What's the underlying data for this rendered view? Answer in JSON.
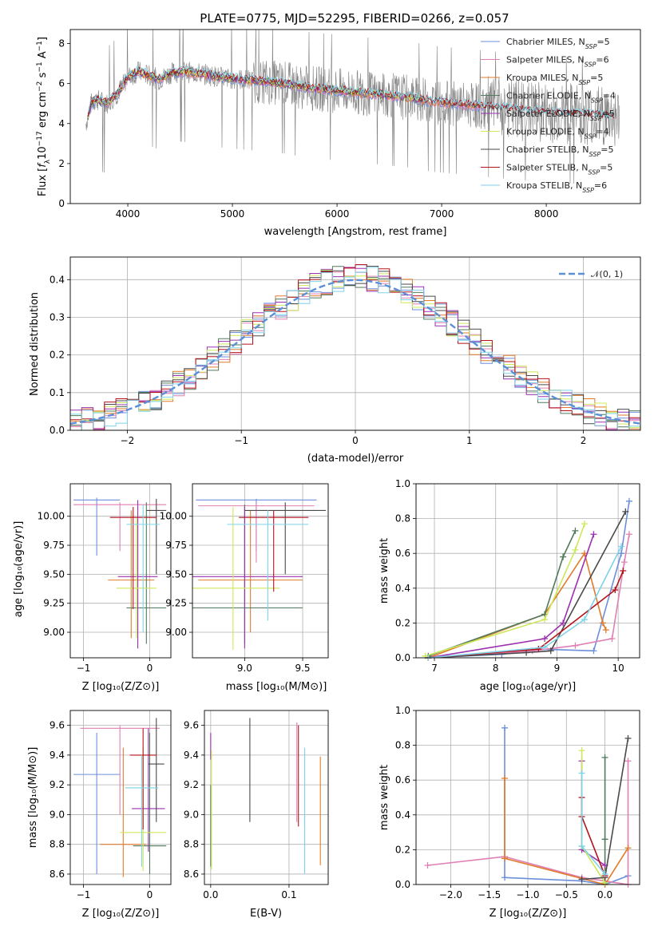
{
  "figure_title": "PLATE=0775, MJD=52295, FIBERID=0266, z=0.057",
  "colors": {
    "chabrier_miles": "#6c8fdc",
    "salpeter_miles": "#e07fb3",
    "kroupa_miles": "#e07b2a",
    "chabrier_elodie": "#527a5c",
    "salpeter_elodie": "#9b30b0",
    "kroupa_elodie": "#cde85a",
    "chabrier_stelib": "#4a4a4a",
    "salpeter_stelib": "#b5121b",
    "kroupa_stelib": "#7dd3e8",
    "data": "#808080",
    "gauss": "#5b8fd6"
  },
  "chart_data": [
    {
      "id": "spectrum",
      "type": "line",
      "title": "PLATE=0775, MJD=52295, FIBERID=0266, z=0.057",
      "xlabel": "wavelength [Angstrom, rest frame]",
      "ylabel": "Flux [f_λ 10^-17 erg cm^-2 s^-1 A^-1]",
      "xlim": [
        3450,
        8900
      ],
      "ylim": [
        0,
        8.7
      ],
      "xticks": [
        "4000",
        "5000",
        "6000",
        "7000",
        "8000"
      ],
      "yticks": [
        "0",
        "2",
        "4",
        "6",
        "8"
      ],
      "legend_position": "top-right",
      "legend": [
        {
          "label": "Chabrier MILES, N",
          "sub": "SSP",
          "suffix": "=5",
          "color": "chabrier_miles"
        },
        {
          "label": "Salpeter MILES, N",
          "sub": "SSP",
          "suffix": "=6",
          "color": "salpeter_miles"
        },
        {
          "label": "Kroupa MILES, N",
          "sub": "SSP",
          "suffix": "=5",
          "color": "kroupa_miles"
        },
        {
          "label": "Chabrier ELODIE, N",
          "sub": "SSP",
          "suffix": "=4",
          "color": "chabrier_elodie"
        },
        {
          "label": "Salpeter ELODIE, N",
          "sub": "SSP",
          "suffix": "=5",
          "color": "salpeter_elodie"
        },
        {
          "label": "Kroupa ELODIE, N",
          "sub": "SSP",
          "suffix": "=4",
          "color": "kroupa_elodie"
        },
        {
          "label": "Chabrier STELIB, N",
          "sub": "SSP",
          "suffix": "=5",
          "color": "chabrier_stelib"
        },
        {
          "label": "Salpeter STELIB, N",
          "sub": "SSP",
          "suffix": "=5",
          "color": "salpeter_stelib"
        },
        {
          "label": "Kroupa STELIB, N",
          "sub": "SSP",
          "suffix": "=6",
          "color": "kroupa_stelib"
        }
      ],
      "continuum": {
        "x": [
          3600,
          3650,
          3700,
          3800,
          3900,
          4000,
          4100,
          4200,
          4300,
          4400,
          4500,
          4700,
          4900,
          5100,
          5300,
          5500,
          5700,
          5900,
          6100,
          6300,
          6500,
          6700,
          6900,
          7100,
          7300,
          7500,
          7700,
          7900,
          8100,
          8300,
          8500,
          8700
        ],
        "y": [
          4.0,
          5.0,
          5.2,
          5.0,
          5.5,
          6.3,
          6.6,
          6.4,
          6.2,
          6.5,
          6.6,
          6.5,
          6.3,
          6.2,
          6.1,
          6.0,
          5.8,
          5.7,
          5.6,
          5.5,
          5.4,
          5.3,
          5.1,
          5.0,
          4.9,
          4.8,
          4.7,
          4.6,
          4.5,
          4.5,
          4.4,
          4.3
        ]
      }
    },
    {
      "id": "residuals",
      "type": "line",
      "xlabel": "(data-model)/error",
      "ylabel": "Normed distribution",
      "xlim": [
        -2.5,
        2.5
      ],
      "ylim": [
        0,
        0.46
      ],
      "xticks": [
        "−2",
        "−1",
        "0",
        "1",
        "2"
      ],
      "yticks": [
        "0.0",
        "0.1",
        "0.2",
        "0.3",
        "0.4"
      ],
      "grid": true,
      "legend_label": "𝒩(0, 1)",
      "legend_position": "top-right",
      "bin_width": 0.1
    },
    {
      "id": "age_vs_Z",
      "type": "scatter",
      "xlabel": "Z [log10(Z/Z⊙)]",
      "ylabel": "age [log10(age/yr)]",
      "xlim": [
        -1.2,
        0.32
      ],
      "ylim": [
        8.78,
        10.28
      ],
      "xticks": [
        "−1",
        "0"
      ],
      "yticks": [
        "9.00",
        "9.25",
        "9.50",
        "9.75",
        "10.00"
      ],
      "grid": true,
      "points": [
        {
          "x": -0.8,
          "y": 10.14,
          "xerr": 0.35,
          "yerr": 0.0,
          "y_lo": 9.66,
          "y_hi": 10.16,
          "color": "chabrier_miles"
        },
        {
          "x": -0.45,
          "y": 10.1,
          "xerr": 0.7,
          "y_lo": 9.7,
          "y_hi": 10.12,
          "color": "salpeter_miles"
        },
        {
          "x": -0.28,
          "y": 9.45,
          "xerr": 0.35,
          "y_lo": 8.95,
          "y_hi": 10.05,
          "color": "kroupa_miles"
        },
        {
          "x": -0.05,
          "y": 9.21,
          "xerr": 0.3,
          "y_lo": 8.9,
          "y_hi": 10.12,
          "color": "chabrier_elodie"
        },
        {
          "x": -0.18,
          "y": 9.48,
          "xerr": 0.3,
          "y_lo": 8.86,
          "y_hi": 10.14,
          "color": "salpeter_elodie"
        },
        {
          "x": -0.2,
          "y": 9.38,
          "xerr": 0.3,
          "y_lo": 8.95,
          "y_hi": 9.98,
          "color": "kroupa_elodie"
        },
        {
          "x": 0.1,
          "y": 10.05,
          "xerr": 0.15,
          "y_lo": 9.5,
          "y_hi": 10.15,
          "color": "chabrier_stelib"
        },
        {
          "x": -0.25,
          "y": 9.99,
          "xerr": 0.35,
          "y_lo": 9.2,
          "y_hi": 10.08,
          "color": "salpeter_stelib"
        },
        {
          "x": -0.1,
          "y": 9.93,
          "xerr": 0.25,
          "y_lo": 9.0,
          "y_hi": 10.1,
          "color": "kroupa_stelib"
        }
      ]
    },
    {
      "id": "age_vs_mass",
      "type": "scatter",
      "xlabel": "mass [log10(M/M⊙)]",
      "ylabel": "",
      "xlim": [
        8.55,
        9.72
      ],
      "ylim": [
        8.78,
        10.28
      ],
      "xticks": [
        "9.0",
        "9.5"
      ],
      "yticks": [
        "9.00",
        "9.25",
        "9.50",
        "9.75",
        "10.00"
      ],
      "grid": true
    },
    {
      "id": "massweight_vs_age",
      "type": "line",
      "xlabel": "age [log10(age/yr)]",
      "ylabel": "mass weight",
      "xlim": [
        6.7,
        10.35
      ],
      "ylim": [
        0,
        1.0
      ],
      "xticks": [
        "7",
        "8",
        "9",
        "10"
      ],
      "yticks": [
        "0.0",
        "0.2",
        "0.4",
        "0.6",
        "0.8",
        "1.0"
      ],
      "grid": true,
      "series": [
        {
          "color": "chabrier_miles",
          "x": [
            6.9,
            8.1,
            8.7,
            9.6,
            10.05,
            10.18
          ],
          "y": [
            0.0,
            0.02,
            0.05,
            0.04,
            0.6,
            0.9
          ]
        },
        {
          "color": "salpeter_miles",
          "x": [
            6.9,
            8.6,
            9.3,
            9.9,
            10.1,
            10.18
          ],
          "y": [
            0.0,
            0.04,
            0.07,
            0.11,
            0.55,
            0.71
          ]
        },
        {
          "color": "kroupa_miles",
          "x": [
            6.9,
            8.8,
            9.45,
            9.75,
            9.8
          ],
          "y": [
            0.0,
            0.25,
            0.6,
            0.2,
            0.16
          ]
        },
        {
          "color": "chabrier_elodie",
          "x": [
            6.9,
            8.8,
            9.1,
            9.3
          ],
          "y": [
            0.01,
            0.25,
            0.58,
            0.73
          ]
        },
        {
          "color": "salpeter_elodie",
          "x": [
            6.9,
            8.8,
            9.1,
            9.6
          ],
          "y": [
            0.0,
            0.11,
            0.2,
            0.71
          ]
        },
        {
          "color": "kroupa_elodie",
          "x": [
            6.85,
            8.8,
            9.3,
            9.45
          ],
          "y": [
            0.01,
            0.22,
            0.62,
            0.77
          ]
        },
        {
          "color": "chabrier_stelib",
          "x": [
            6.9,
            8.5,
            8.9,
            10.12
          ],
          "y": [
            0.0,
            0.03,
            0.04,
            0.84
          ]
        },
        {
          "color": "salpeter_stelib",
          "x": [
            6.9,
            8.7,
            9.95,
            10.08
          ],
          "y": [
            0.0,
            0.05,
            0.39,
            0.5
          ]
        },
        {
          "color": "kroupa_stelib",
          "x": [
            6.9,
            8.8,
            9.45,
            10.05
          ],
          "y": [
            0.0,
            0.06,
            0.22,
            0.64
          ]
        }
      ]
    },
    {
      "id": "mass_vs_Z",
      "type": "scatter",
      "xlabel": "Z [log10(Z/Z⊙)]",
      "ylabel": "mass [log10(M/M⊙)]",
      "xlim": [
        -1.2,
        0.32
      ],
      "ylim": [
        8.53,
        9.7
      ],
      "xticks": [
        "−1",
        "0"
      ],
      "yticks": [
        "8.6",
        "8.8",
        "9.0",
        "9.2",
        "9.4",
        "9.6"
      ],
      "grid": true
    },
    {
      "id": "mass_vs_ebv",
      "type": "scatter",
      "xlabel": "E(B-V)",
      "ylabel": "",
      "xlim": [
        -0.008,
        0.15
      ],
      "ylim": [
        8.53,
        9.7
      ],
      "xticks": [
        "0.0",
        "0.1"
      ],
      "yticks": [
        "8.6",
        "8.8",
        "9.0",
        "9.2",
        "9.4",
        "9.6"
      ],
      "grid": true
    },
    {
      "id": "massweight_vs_Z",
      "type": "line",
      "xlabel": "Z [log10(Z/Z⊙)]",
      "ylabel": "mass weight",
      "xlim": [
        -2.45,
        0.45
      ],
      "ylim": [
        0,
        1.0
      ],
      "xticks": [
        "−2.0",
        "−1.5",
        "−1.0",
        "−0.5",
        "0.0"
      ],
      "yticks": [
        "0.0",
        "0.2",
        "0.4",
        "0.6",
        "0.8",
        "1.0"
      ],
      "grid": true,
      "series": [
        {
          "color": "chabrier_miles",
          "x": [
            -1.3,
            -1.3,
            -0.3,
            0.0,
            0.3
          ],
          "y": [
            0.9,
            0.04,
            0.02,
            0.0,
            0.05
          ]
        },
        {
          "color": "salpeter_miles",
          "x": [
            -2.3,
            -1.3,
            -0.3,
            0.3,
            0.3
          ],
          "y": [
            0.11,
            0.16,
            0.04,
            0.0,
            0.71
          ]
        },
        {
          "color": "kroupa_miles",
          "x": [
            -1.3,
            -1.3,
            0.0,
            0.3
          ],
          "y": [
            0.61,
            0.15,
            0.0,
            0.21
          ]
        },
        {
          "color": "chabrier_elodie",
          "x": [
            0.0,
            0.0,
            0.0
          ],
          "y": [
            0.73,
            0.26,
            0.01
          ]
        },
        {
          "color": "salpeter_elodie",
          "x": [
            -0.3,
            -0.3,
            0.0
          ],
          "y": [
            0.71,
            0.2,
            0.11
          ]
        },
        {
          "color": "kroupa_elodie",
          "x": [
            -0.3,
            -0.3,
            0.0
          ],
          "y": [
            0.77,
            0.22,
            0.01
          ]
        },
        {
          "color": "chabrier_stelib",
          "x": [
            -0.3,
            0.0,
            0.3
          ],
          "y": [
            0.03,
            0.04,
            0.84
          ]
        },
        {
          "color": "salpeter_stelib",
          "x": [
            -0.3,
            -0.3,
            0.0
          ],
          "y": [
            0.5,
            0.39,
            0.05
          ]
        },
        {
          "color": "kroupa_stelib",
          "x": [
            -0.3,
            -0.3,
            0.0
          ],
          "y": [
            0.64,
            0.22,
            0.06
          ]
        }
      ]
    }
  ]
}
